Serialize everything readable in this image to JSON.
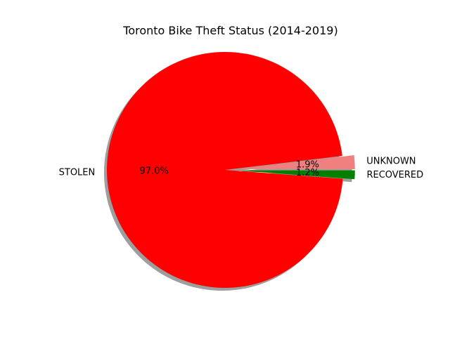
{
  "chart_data": {
    "type": "pie",
    "title": "Toronto Bike Theft Status (2014-2019)",
    "start_angle_deg": 0,
    "direction": "counterclockwise",
    "shadow": true,
    "slices": [
      {
        "label": "UNKNOWN",
        "value": 1.9,
        "pct_label": "1.9%",
        "color": "#f08080",
        "exploded": true
      },
      {
        "label": "STOLEN",
        "value": 97.0,
        "pct_label": "97.0%",
        "color": "#ff0000",
        "exploded": false
      },
      {
        "label": "RECOVERED",
        "value": 1.2,
        "pct_label": "1.2%",
        "color": "#008000",
        "exploded": true
      }
    ]
  }
}
